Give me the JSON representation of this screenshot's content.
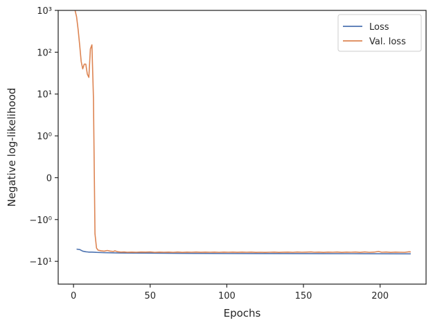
{
  "chart_data": {
    "type": "line",
    "xlabel": "Epochs",
    "ylabel": "Negative log-likelihood",
    "xlim": [
      -10,
      230
    ],
    "ylim": [
      -35,
      1000
    ],
    "yscale": "symlog",
    "ylinthresh": 1,
    "grid": false,
    "legend_position": "top-right",
    "x_ticks": [
      0,
      50,
      100,
      150,
      200
    ],
    "y_ticks": [
      {
        "value": -10,
        "label": "−10¹"
      },
      {
        "value": -1,
        "label": "−10⁰"
      },
      {
        "value": 0,
        "label": "0"
      },
      {
        "value": 1,
        "label": "10⁰"
      },
      {
        "value": 10,
        "label": "10¹"
      },
      {
        "value": 100,
        "label": "10²"
      },
      {
        "value": 1000,
        "label": "10³"
      }
    ],
    "series": [
      {
        "name": "Loss",
        "color": "#4c72b0",
        "points": [
          [
            2,
            -5.1
          ],
          [
            4,
            -5.2
          ],
          [
            6,
            -5.7
          ],
          [
            8,
            -5.9
          ],
          [
            10,
            -6.0
          ],
          [
            12,
            -6.0
          ],
          [
            15,
            -6.1
          ],
          [
            20,
            -6.2
          ],
          [
            25,
            -6.25
          ],
          [
            30,
            -6.3
          ],
          [
            40,
            -6.35
          ],
          [
            60,
            -6.4
          ],
          [
            80,
            -6.45
          ],
          [
            100,
            -6.5
          ],
          [
            130,
            -6.52
          ],
          [
            160,
            -6.55
          ],
          [
            190,
            -6.57
          ],
          [
            220,
            -6.6
          ]
        ]
      },
      {
        "name": "Val. loss",
        "color": "#dd8452",
        "points": [
          [
            1,
            1000
          ],
          [
            2,
            700
          ],
          [
            3,
            350
          ],
          [
            4,
            150
          ],
          [
            5,
            60
          ],
          [
            6,
            40
          ],
          [
            7,
            52
          ],
          [
            8,
            52
          ],
          [
            9,
            30
          ],
          [
            10,
            25
          ],
          [
            11,
            120
          ],
          [
            12,
            150
          ],
          [
            13,
            8
          ],
          [
            14,
            -2.2
          ],
          [
            15,
            -4.8
          ],
          [
            16,
            -5.4
          ],
          [
            18,
            -5.6
          ],
          [
            20,
            -5.7
          ],
          [
            22,
            -5.5
          ],
          [
            24,
            -5.7
          ],
          [
            26,
            -5.8
          ],
          [
            27,
            -5.6
          ],
          [
            29,
            -5.9
          ],
          [
            31,
            -6.0
          ],
          [
            33,
            -5.95
          ],
          [
            35,
            -6.05
          ],
          [
            38,
            -6.0
          ],
          [
            41,
            -6.05
          ],
          [
            44,
            -5.98
          ],
          [
            47,
            -6.02
          ],
          [
            50,
            -5.95
          ],
          [
            53,
            -6.08
          ],
          [
            56,
            -6.0
          ],
          [
            59,
            -6.05
          ],
          [
            62,
            -6.0
          ],
          [
            65,
            -6.08
          ],
          [
            68,
            -5.98
          ],
          [
            71,
            -6.1
          ],
          [
            74,
            -6.0
          ],
          [
            77,
            -6.05
          ],
          [
            80,
            -5.98
          ],
          [
            83,
            -6.07
          ],
          [
            86,
            -6.0
          ],
          [
            89,
            -6.05
          ],
          [
            92,
            -6.0
          ],
          [
            95,
            -6.08
          ],
          [
            98,
            -6.0
          ],
          [
            101,
            -6.05
          ],
          [
            104,
            -6.0
          ],
          [
            107,
            -6.07
          ],
          [
            110,
            -6.02
          ],
          [
            113,
            -6.05
          ],
          [
            116,
            -6.0
          ],
          [
            119,
            -6.1
          ],
          [
            122,
            -6.05
          ],
          [
            125,
            -6.1
          ],
          [
            128,
            -6.05
          ],
          [
            131,
            -6.02
          ],
          [
            134,
            -6.1
          ],
          [
            137,
            -6.03
          ],
          [
            140,
            -6.0
          ],
          [
            143,
            -6.08
          ],
          [
            146,
            -5.98
          ],
          [
            149,
            -6.05
          ],
          [
            152,
            -6.0
          ],
          [
            155,
            -5.95
          ],
          [
            157,
            -6.05
          ],
          [
            160,
            -6.0
          ],
          [
            163,
            -6.1
          ],
          [
            166,
            -6.0
          ],
          [
            169,
            -6.05
          ],
          [
            172,
            -5.98
          ],
          [
            175,
            -6.1
          ],
          [
            178,
            -6.02
          ],
          [
            181,
            -6.05
          ],
          [
            184,
            -5.98
          ],
          [
            187,
            -6.1
          ],
          [
            190,
            -5.95
          ],
          [
            193,
            -6.08
          ],
          [
            196,
            -6.02
          ],
          [
            199,
            -5.8
          ],
          [
            201,
            -6.05
          ],
          [
            204,
            -5.98
          ],
          [
            207,
            -6.1
          ],
          [
            210,
            -6.0
          ],
          [
            213,
            -6.05
          ],
          [
            216,
            -6.08
          ],
          [
            219,
            -5.9
          ],
          [
            220,
            -5.95
          ]
        ]
      }
    ]
  }
}
